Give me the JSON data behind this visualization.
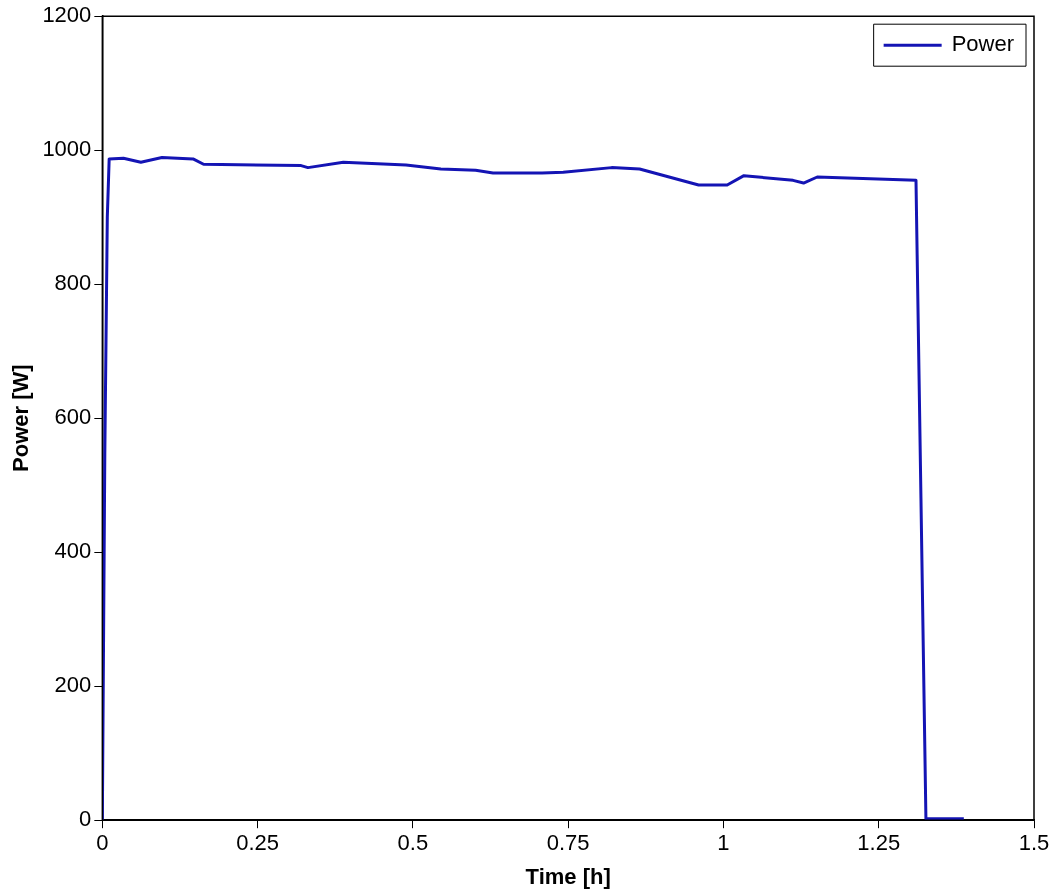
{
  "chart_data": {
    "type": "line",
    "xlabel": "Time [h]",
    "ylabel": "Power [W]",
    "x": [
      0,
      0.004,
      0.008,
      0.011,
      0.034,
      0.062,
      0.096,
      0.146,
      0.163,
      0.32,
      0.331,
      0.388,
      0.489,
      0.545,
      0.601,
      0.629,
      0.708,
      0.742,
      0.82,
      0.865,
      0.96,
      1.006,
      1.033,
      1.112,
      1.129,
      1.151,
      1.31,
      1.318,
      1.326,
      1.387
    ],
    "series": [
      {
        "name": "Power",
        "color": "#1414b4",
        "values": [
          0,
          550,
          900,
          987,
          988,
          982,
          989,
          987,
          979,
          977,
          974,
          982,
          978,
          972,
          970,
          966,
          966,
          967,
          974,
          972,
          948,
          948,
          962,
          955,
          951,
          960,
          955,
          480,
          2,
          2
        ]
      }
    ],
    "xlim": [
      0,
      1.5
    ],
    "xticks": [
      0,
      0.25,
      0.5,
      0.75,
      1,
      1.25,
      1.5
    ],
    "ylim": [
      0,
      1200
    ],
    "yticks": [
      0,
      200,
      400,
      600,
      800,
      1000,
      1200
    ],
    "grid": false,
    "legend": "top right",
    "marker": "none",
    "line_style": "solid"
  }
}
